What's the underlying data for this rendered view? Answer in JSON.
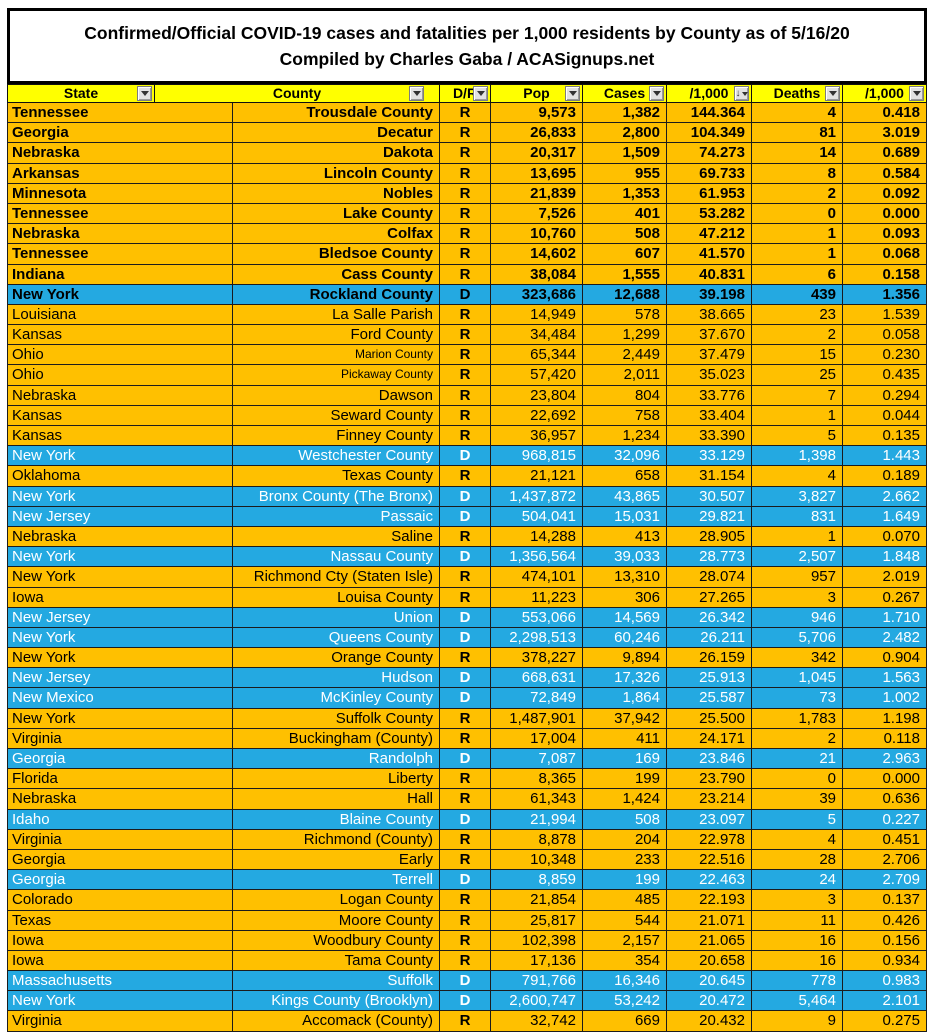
{
  "title": {
    "line1": "Confirmed/Official COVID-19 cases and fatalities per 1,000 residents by County as of 5/16/20",
    "line2": "Compiled by Charles Gaba / ACASignups.net"
  },
  "colors": {
    "header_yellow": "#FFFF00",
    "republican_orange": "#FFC000",
    "democrat_blue": "#24A9E1",
    "grid_line": "#1c1c1c",
    "bold_text": "#000000",
    "blue_row_text": "#ffffff"
  },
  "table": {
    "columns": [
      "State",
      "County",
      "D/R",
      "Pop",
      "Cases",
      "/1,000",
      "Deaths",
      "/1,000"
    ],
    "sorted_column_index": 5,
    "sorted_direction": "descending",
    "filter_icon": "dropdown-arrow",
    "bold_rows": 10,
    "small_county_rows": [
      12,
      13
    ],
    "rows": [
      [
        "Tennessee",
        "Trousdale County",
        "R",
        "9,573",
        "1,382",
        "144.364",
        "4",
        "0.418"
      ],
      [
        "Georgia",
        "Decatur",
        "R",
        "26,833",
        "2,800",
        "104.349",
        "81",
        "3.019"
      ],
      [
        "Nebraska",
        "Dakota",
        "R",
        "20,317",
        "1,509",
        "74.273",
        "14",
        "0.689"
      ],
      [
        "Arkansas",
        "Lincoln County",
        "R",
        "13,695",
        "955",
        "69.733",
        "8",
        "0.584"
      ],
      [
        "Minnesota",
        "Nobles",
        "R",
        "21,839",
        "1,353",
        "61.953",
        "2",
        "0.092"
      ],
      [
        "Tennessee",
        "Lake County",
        "R",
        "7,526",
        "401",
        "53.282",
        "0",
        "0.000"
      ],
      [
        "Nebraska",
        "Colfax",
        "R",
        "10,760",
        "508",
        "47.212",
        "1",
        "0.093"
      ],
      [
        "Tennessee",
        "Bledsoe County",
        "R",
        "14,602",
        "607",
        "41.570",
        "1",
        "0.068"
      ],
      [
        "Indiana",
        "Cass County",
        "R",
        "38,084",
        "1,555",
        "40.831",
        "6",
        "0.158"
      ],
      [
        "New York",
        "Rockland County",
        "D",
        "323,686",
        "12,688",
        "39.198",
        "439",
        "1.356"
      ],
      [
        "Louisiana",
        "La Salle Parish",
        "R",
        "14,949",
        "578",
        "38.665",
        "23",
        "1.539"
      ],
      [
        "Kansas",
        "Ford County",
        "R",
        "34,484",
        "1,299",
        "37.670",
        "2",
        "0.058"
      ],
      [
        "Ohio",
        "Marion County",
        "R",
        "65,344",
        "2,449",
        "37.479",
        "15",
        "0.230"
      ],
      [
        "Ohio",
        "Pickaway County",
        "R",
        "57,420",
        "2,011",
        "35.023",
        "25",
        "0.435"
      ],
      [
        "Nebraska",
        "Dawson",
        "R",
        "23,804",
        "804",
        "33.776",
        "7",
        "0.294"
      ],
      [
        "Kansas",
        "Seward County",
        "R",
        "22,692",
        "758",
        "33.404",
        "1",
        "0.044"
      ],
      [
        "Kansas",
        "Finney County",
        "R",
        "36,957",
        "1,234",
        "33.390",
        "5",
        "0.135"
      ],
      [
        "New York",
        "Westchester County",
        "D",
        "968,815",
        "32,096",
        "33.129",
        "1,398",
        "1.443"
      ],
      [
        "Oklahoma",
        "Texas County",
        "R",
        "21,121",
        "658",
        "31.154",
        "4",
        "0.189"
      ],
      [
        "New York",
        "Bronx County (The Bronx)",
        "D",
        "1,437,872",
        "43,865",
        "30.507",
        "3,827",
        "2.662"
      ],
      [
        "New Jersey",
        "Passaic",
        "D",
        "504,041",
        "15,031",
        "29.821",
        "831",
        "1.649"
      ],
      [
        "Nebraska",
        "Saline",
        "R",
        "14,288",
        "413",
        "28.905",
        "1",
        "0.070"
      ],
      [
        "New York",
        "Nassau County",
        "D",
        "1,356,564",
        "39,033",
        "28.773",
        "2,507",
        "1.848"
      ],
      [
        "New York",
        "Richmond Cty (Staten Isle)",
        "R",
        "474,101",
        "13,310",
        "28.074",
        "957",
        "2.019"
      ],
      [
        "Iowa",
        "Louisa County",
        "R",
        "11,223",
        "306",
        "27.265",
        "3",
        "0.267"
      ],
      [
        "New Jersey",
        "Union",
        "D",
        "553,066",
        "14,569",
        "26.342",
        "946",
        "1.710"
      ],
      [
        "New York",
        "Queens County",
        "D",
        "2,298,513",
        "60,246",
        "26.211",
        "5,706",
        "2.482"
      ],
      [
        "New York",
        "Orange County",
        "R",
        "378,227",
        "9,894",
        "26.159",
        "342",
        "0.904"
      ],
      [
        "New Jersey",
        "Hudson",
        "D",
        "668,631",
        "17,326",
        "25.913",
        "1,045",
        "1.563"
      ],
      [
        "New Mexico",
        "McKinley County",
        "D",
        "72,849",
        "1,864",
        "25.587",
        "73",
        "1.002"
      ],
      [
        "New York",
        "Suffolk County",
        "R",
        "1,487,901",
        "37,942",
        "25.500",
        "1,783",
        "1.198"
      ],
      [
        "Virginia",
        "Buckingham (County)",
        "R",
        "17,004",
        "411",
        "24.171",
        "2",
        "0.118"
      ],
      [
        "Georgia",
        "Randolph",
        "D",
        "7,087",
        "169",
        "23.846",
        "21",
        "2.963"
      ],
      [
        "Florida",
        "Liberty",
        "R",
        "8,365",
        "199",
        "23.790",
        "0",
        "0.000"
      ],
      [
        "Nebraska",
        "Hall",
        "R",
        "61,343",
        "1,424",
        "23.214",
        "39",
        "0.636"
      ],
      [
        "Idaho",
        "Blaine County",
        "D",
        "21,994",
        "508",
        "23.097",
        "5",
        "0.227"
      ],
      [
        "Virginia",
        "Richmond (County)",
        "R",
        "8,878",
        "204",
        "22.978",
        "4",
        "0.451"
      ],
      [
        "Georgia",
        "Early",
        "R",
        "10,348",
        "233",
        "22.516",
        "28",
        "2.706"
      ],
      [
        "Georgia",
        "Terrell",
        "D",
        "8,859",
        "199",
        "22.463",
        "24",
        "2.709"
      ],
      [
        "Colorado",
        "Logan County",
        "R",
        "21,854",
        "485",
        "22.193",
        "3",
        "0.137"
      ],
      [
        "Texas",
        "Moore County",
        "R",
        "25,817",
        "544",
        "21.071",
        "11",
        "0.426"
      ],
      [
        "Iowa",
        "Woodbury County",
        "R",
        "102,398",
        "2,157",
        "21.065",
        "16",
        "0.156"
      ],
      [
        "Iowa",
        "Tama County",
        "R",
        "17,136",
        "354",
        "20.658",
        "16",
        "0.934"
      ],
      [
        "Massachusetts",
        "Suffolk",
        "D",
        "791,766",
        "16,346",
        "20.645",
        "778",
        "0.983"
      ],
      [
        "New York",
        "Kings County (Brooklyn)",
        "D",
        "2,600,747",
        "53,242",
        "20.472",
        "5,464",
        "2.101"
      ]
    ],
    "partial_row": [
      "Virginia",
      "Accomack (County)",
      "R",
      "32,742",
      "669",
      "20.432",
      "9",
      "0.275"
    ]
  }
}
